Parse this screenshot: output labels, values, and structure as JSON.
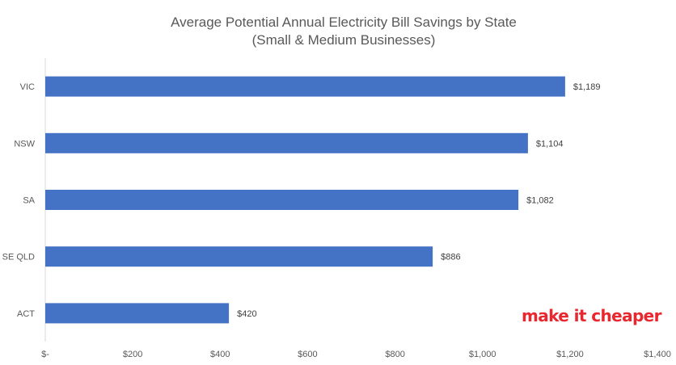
{
  "chart_data": {
    "type": "bar",
    "orientation": "horizontal",
    "title": "Average Potential Annual Electricity Bill Savings by State",
    "subtitle": "(Small & Medium Businesses)",
    "categories": [
      "VIC",
      "NSW",
      "SA",
      "SE QLD",
      "ACT"
    ],
    "values": [
      1189,
      1104,
      1082,
      886,
      420
    ],
    "data_labels": [
      "$1,189",
      "$1,104",
      "$1,082",
      "$886",
      "$420"
    ],
    "x_ticks": [
      0,
      200,
      400,
      600,
      800,
      1000,
      1200,
      1400
    ],
    "x_tick_labels": [
      "$-",
      "$200",
      "$400",
      "$600",
      "$800",
      "$1,000",
      "$1,200",
      "$1,400"
    ],
    "xlim": [
      0,
      1400
    ],
    "xlabel": "",
    "ylabel": "",
    "grid": false,
    "legend": "none",
    "bar_color": "#4472c4"
  },
  "brand": {
    "logo_text": "make it cheaper",
    "color": "#e8272f"
  }
}
